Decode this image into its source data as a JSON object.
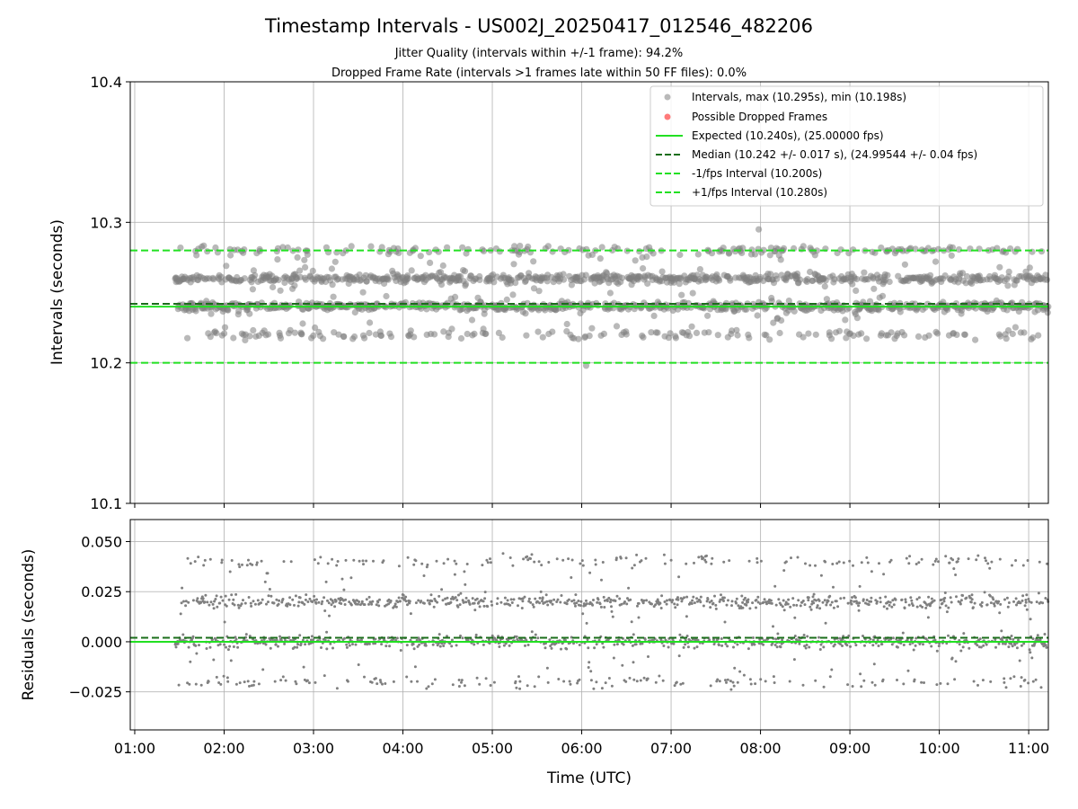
{
  "chart_data": [
    {
      "type": "scatter",
      "title": "Timestamp Intervals - US002J_20250417_012546_482206",
      "subtitle_lines": [
        "Jitter Quality (intervals within +/-1 frame): 94.2%",
        "Dropped Frame Rate (intervals >1 frames late within 50 FF files): 0.0%"
      ],
      "ylabel": "Intervals (seconds)",
      "ylim": [
        10.1,
        10.4
      ],
      "yticks": [
        10.1,
        10.2,
        10.3,
        10.4
      ],
      "ytick_labels": [
        "10.1",
        "10.2",
        "10.3",
        "10.4"
      ],
      "xlim_hours": [
        0.95,
        11.22
      ],
      "xticks_hours": [
        1,
        2,
        3,
        4,
        5,
        6,
        7,
        8,
        9,
        10,
        11
      ],
      "grid": true,
      "legend_placement": "upper-right",
      "data_x_range_hours": [
        1.45,
        11.22
      ],
      "series": [
        {
          "name": "Intervals, max (10.295s), min (10.198s)",
          "kind": "scatter",
          "color": "#808080",
          "max": 10.295,
          "min": 10.198,
          "levels": [
            {
              "value": 10.22,
              "weight": 0.1
            },
            {
              "value": 10.24,
              "weight": 0.4
            },
            {
              "value": 10.26,
              "weight": 0.4
            },
            {
              "value": 10.28,
              "weight": 0.1
            }
          ],
          "level_spread": 0.0015,
          "outlier_fraction": 0.08
        },
        {
          "name": "Possible Dropped Frames",
          "kind": "scatter",
          "color": "#ff6b6b",
          "values": []
        },
        {
          "name": "Expected (10.240s), (25.00000 fps)",
          "kind": "hline",
          "value": 10.24,
          "color": "#22e022",
          "dash": "solid"
        },
        {
          "name": "Median (10.242 +/- 0.017 s), (24.99544 +/- 0.04 fps)",
          "kind": "hline",
          "value": 10.242,
          "color": "#1a6e1a",
          "dash": "dashed"
        },
        {
          "name": "-1/fps Interval (10.200s)",
          "kind": "hline",
          "value": 10.2,
          "color": "#22e022",
          "dash": "dashed"
        },
        {
          "name": "+1/fps Interval (10.280s)",
          "kind": "hline",
          "value": 10.28,
          "color": "#22e022",
          "dash": "dashed"
        }
      ]
    },
    {
      "type": "scatter",
      "xlabel": "Time (UTC)",
      "ylabel": "Residuals (seconds)",
      "ylim": [
        -0.044,
        0.061
      ],
      "yticks": [
        -0.025,
        0.0,
        0.025,
        0.05
      ],
      "ytick_labels": [
        "−0.025",
        "0.000",
        "0.025",
        "0.050"
      ],
      "xlim_hours": [
        0.95,
        11.22
      ],
      "xticks_hours": [
        1,
        2,
        3,
        4,
        5,
        6,
        7,
        8,
        9,
        10,
        11
      ],
      "xtick_labels": [
        "01:00",
        "02:00",
        "03:00",
        "04:00",
        "05:00",
        "06:00",
        "07:00",
        "08:00",
        "09:00",
        "10:00",
        "11:00"
      ],
      "grid": true,
      "series": [
        {
          "kind": "scatter",
          "color": "#808080",
          "levels": [
            {
              "value": -0.02,
              "weight": 0.1
            },
            {
              "value": 0.0,
              "weight": 0.4
            },
            {
              "value": 0.02,
              "weight": 0.4
            },
            {
              "value": 0.04,
              "weight": 0.1
            }
          ],
          "level_spread": 0.0015,
          "outlier_fraction": 0.08
        },
        {
          "kind": "hline",
          "value": 0.0,
          "color": "#22e022",
          "dash": "solid"
        },
        {
          "kind": "hline",
          "value": 0.002,
          "color": "#1a6e1a",
          "dash": "dashed"
        }
      ]
    }
  ]
}
